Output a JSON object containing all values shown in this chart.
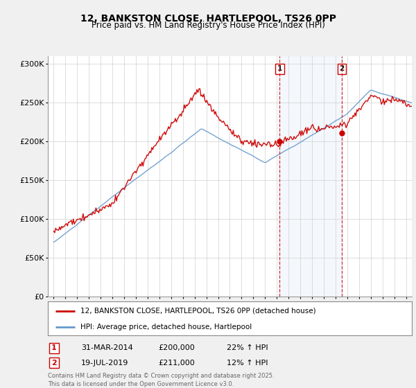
{
  "title": "12, BANKSTON CLOSE, HARTLEPOOL, TS26 0PP",
  "subtitle": "Price paid vs. HM Land Registry's House Price Index (HPI)",
  "red_label": "12, BANKSTON CLOSE, HARTLEPOOL, TS26 0PP (detached house)",
  "blue_label": "HPI: Average price, detached house, Hartlepool",
  "annotation1_date": "31-MAR-2014",
  "annotation1_price": "£200,000",
  "annotation1_hpi": "22% ↑ HPI",
  "annotation2_date": "19-JUL-2019",
  "annotation2_price": "£211,000",
  "annotation2_hpi": "12% ↑ HPI",
  "footer": "Contains HM Land Registry data © Crown copyright and database right 2025.\nThis data is licensed under the Open Government Licence v3.0.",
  "red_color": "#cc0000",
  "blue_color": "#6699cc",
  "vline1_x": 2014.25,
  "vline2_x": 2019.55,
  "dot1_y": 200000,
  "dot2_y": 211000,
  "ylim": [
    0,
    310000
  ],
  "xlim": [
    1994.5,
    2025.5
  ],
  "yticks": [
    0,
    50000,
    100000,
    150000,
    200000,
    250000,
    300000
  ],
  "ytick_labels": [
    "£0",
    "£50K",
    "£100K",
    "£150K",
    "£200K",
    "£250K",
    "£300K"
  ],
  "background_color": "#f0f0f0",
  "plot_bg_color": "#ffffff"
}
